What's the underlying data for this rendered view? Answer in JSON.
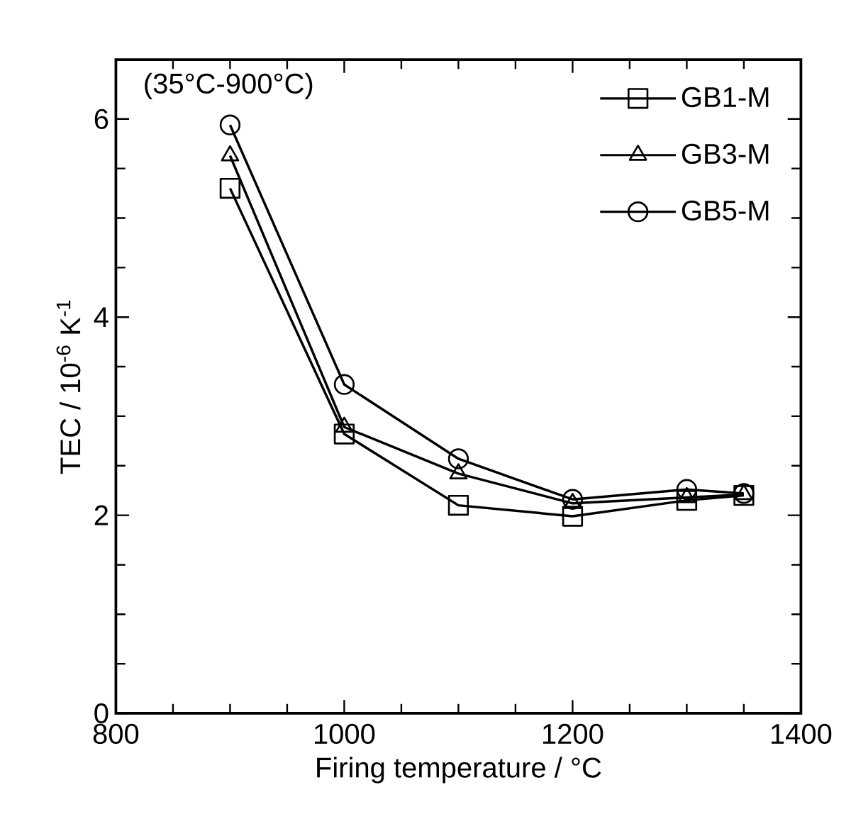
{
  "chart_data": {
    "type": "line",
    "xlabel": "Firing temperature / °C",
    "ylabel": "TEC / 10$^{-6}$ K$^{-1}$",
    "annotations": [
      "(35°C-900°C)"
    ],
    "x": [
      900,
      1000,
      1100,
      1200,
      1300,
      1350
    ],
    "series": [
      {
        "name": "GB1-M",
        "color": "#000000",
        "marker": "square",
        "values": [
          5.3,
          2.82,
          2.1,
          1.99,
          2.15,
          2.2
        ]
      },
      {
        "name": "GB3-M",
        "color": "#000000",
        "marker": "triangle",
        "values": [
          5.63,
          2.89,
          2.42,
          2.12,
          2.18,
          2.21
        ]
      },
      {
        "name": "GB5-M",
        "color": "#000000",
        "marker": "circle",
        "values": [
          5.94,
          3.32,
          2.57,
          2.16,
          2.26,
          2.22
        ]
      }
    ],
    "xlim": [
      800,
      1400
    ],
    "xticks": [
      800,
      1000,
      1200,
      1400
    ],
    "ylim": [
      0,
      6.6
    ],
    "yticks": [
      0,
      2,
      4,
      6
    ],
    "grid": false,
    "legend": "top right",
    "line_style": "solid"
  }
}
